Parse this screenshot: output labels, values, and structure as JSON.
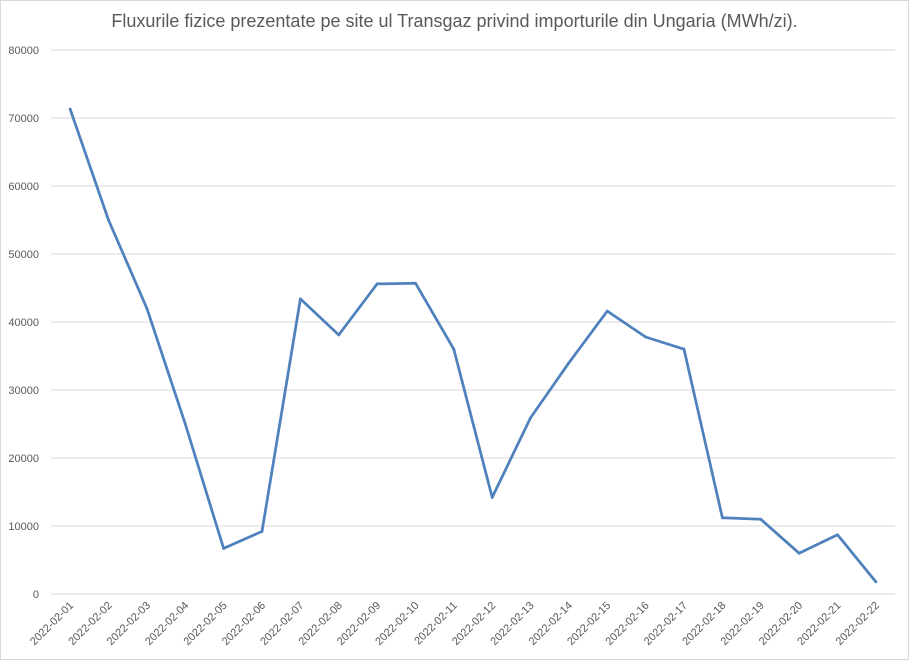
{
  "chart_data": {
    "type": "line",
    "title": "Fluxurile fizice prezentate pe site ul Transgaz privind importurile din Ungaria (MWh/zi).",
    "xlabel": "",
    "ylabel": "",
    "ylim": [
      0,
      80000
    ],
    "yticks": [
      0,
      10000,
      20000,
      30000,
      40000,
      50000,
      60000,
      70000,
      80000
    ],
    "grid": true,
    "legend": "none",
    "line_color": "#4f81bd",
    "grid_color": "#d9d9d9",
    "categories": [
      "2022-02-01",
      "2022-02-02",
      "2022-02-03",
      "2022-02-04",
      "2022-02-05",
      "2022-02-06",
      "2022-02-07",
      "2022-02-08",
      "2022-02-09",
      "2022-02-10",
      "2022-02-11",
      "2022-02-12",
      "2022-02-13",
      "2022-02-14",
      "2022-02-15",
      "2022-02-16",
      "2022-02-17",
      "2022-02-18",
      "2022-02-19",
      "2022-02-20",
      "2022-02-21",
      "2022-02-22"
    ],
    "series": [
      {
        "values": [
          71300,
          55000,
          42000,
          25000,
          6700,
          9200,
          43400,
          38100,
          45600,
          45700,
          36000,
          14200,
          25900,
          34000,
          41600,
          37800,
          36000,
          11200,
          11000,
          6000,
          8700,
          1800
        ]
      }
    ]
  }
}
